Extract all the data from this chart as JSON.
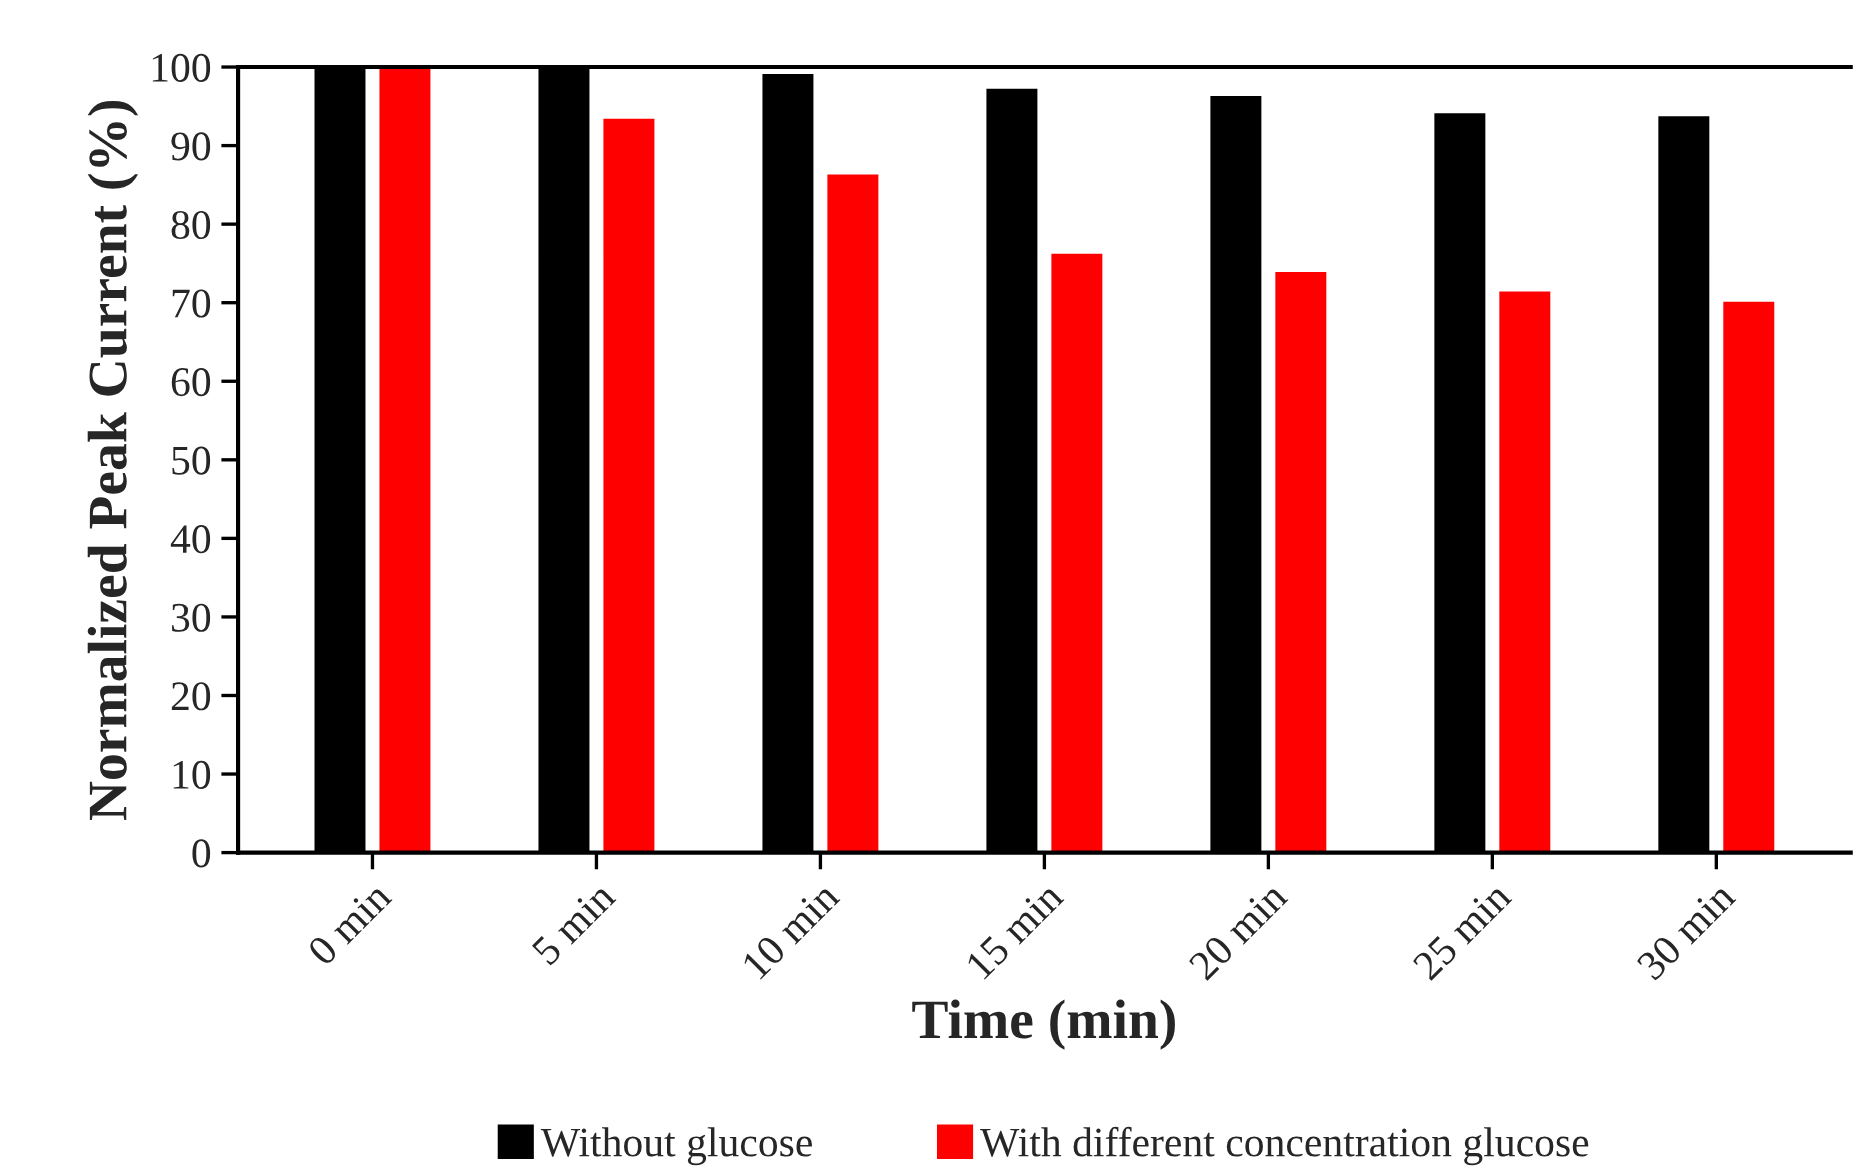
{
  "chart_data": {
    "type": "bar",
    "xlabel": "Time (min)",
    "ylabel": "Normalized Peak Current (%)",
    "categories": [
      "0 min",
      "5 min",
      "10 min",
      "15 min",
      "20 min",
      "25 min",
      "30 min"
    ],
    "series": [
      {
        "name": "Without glucose",
        "color": "#000000",
        "values": [
          100,
          100,
          99.3,
          97.4,
          96.5,
          94.3,
          93.9
        ]
      },
      {
        "name": "With different concentration glucose",
        "color": "#ff0000",
        "values": [
          100,
          93.6,
          86.5,
          76.4,
          74.1,
          71.6,
          70.3
        ]
      }
    ],
    "ylim": [
      0,
      100
    ],
    "yticks": [
      0,
      10,
      20,
      30,
      40,
      50,
      60,
      70,
      80,
      90,
      100
    ],
    "grid": false,
    "legend": "bottom"
  }
}
